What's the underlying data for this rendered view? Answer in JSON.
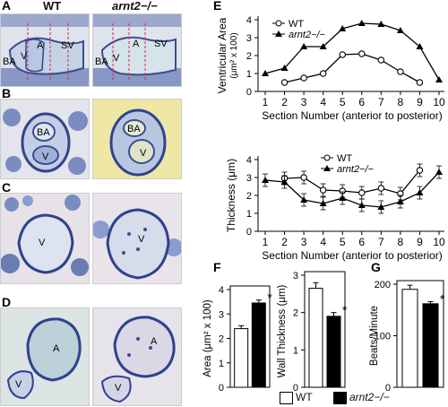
{
  "panel_letters": {
    "a": "A",
    "b": "B",
    "c": "C",
    "d": "D",
    "e": "E",
    "f": "F",
    "g": "G"
  },
  "histology": {
    "col_wt": "WT",
    "col_mut": "arnt2−/−",
    "a_wt_labels": [
      "BA",
      "V",
      "A",
      "SV"
    ],
    "a_mut_labels": [
      "BA",
      "V",
      "A",
      "SV"
    ],
    "b_wt_labels": [
      "BA",
      "V"
    ],
    "b_mut_labels": [
      "BA",
      "V"
    ],
    "c_wt_labels": [
      "V"
    ],
    "c_mut_labels": [
      "V"
    ],
    "d_wt_labels": [
      "A",
      "V"
    ],
    "d_mut_labels": [
      "A",
      "V"
    ]
  },
  "colors": {
    "he_bg": "#d9dfe8",
    "tissue_blue": "#5a6fa8",
    "tissue_light": "#c7d4e4",
    "mut_yellow": "#efe7a5",
    "wt_bar": "#ffffff",
    "mut_bar": "#000000"
  },
  "chart_data": [
    {
      "type": "line",
      "ylabel": "Ventricular Area",
      "ylabel_unit": "(μm² x 100)",
      "xlabel": "Section Number (anterior to posterior)",
      "x": [
        1,
        2,
        3,
        4,
        5,
        6,
        7,
        8,
        9,
        10
      ],
      "ylim": [
        0,
        4
      ],
      "yticks": [
        0,
        1,
        2,
        3,
        4
      ],
      "series": [
        {
          "name": "WT",
          "marker": "open-circle",
          "x": [
            2,
            3,
            4,
            5,
            6,
            7,
            8,
            9
          ],
          "values": [
            0.5,
            0.75,
            1.0,
            2.05,
            2.1,
            1.75,
            1.1,
            0.5
          ]
        },
        {
          "name": "arnt2−/−",
          "marker": "filled-triangle",
          "x": [
            1,
            2,
            3,
            4,
            5,
            6,
            7,
            8,
            9,
            10
          ],
          "values": [
            1.0,
            1.3,
            2.5,
            2.5,
            3.5,
            3.8,
            3.75,
            3.4,
            2.5,
            0.65
          ]
        }
      ],
      "legend": "top-left"
    },
    {
      "type": "line",
      "ylabel": "Thickness (μm)",
      "xlabel": "Section Number (anterior to posterior)",
      "x": [
        1,
        2,
        3,
        4,
        5,
        6,
        7,
        8,
        9,
        10
      ],
      "ylim": [
        0,
        4
      ],
      "yticks": [
        0,
        1,
        2,
        3,
        4
      ],
      "series": [
        {
          "name": "WT",
          "marker": "open-circle",
          "x": [
            2,
            3,
            4,
            5,
            6,
            7,
            8,
            9
          ],
          "values": [
            2.95,
            3.0,
            2.3,
            2.25,
            2.15,
            2.4,
            2.1,
            3.4
          ]
        },
        {
          "name": "arnt2−/−",
          "marker": "filled-triangle",
          "x": [
            1,
            2,
            3,
            4,
            5,
            6,
            7,
            8,
            9,
            10
          ],
          "values": [
            2.85,
            2.75,
            1.75,
            1.55,
            1.85,
            1.45,
            1.35,
            1.65,
            2.15,
            3.3
          ]
        }
      ],
      "legend": "top-center"
    },
    {
      "type": "bar",
      "ylabel": "Area (μm² x 100)",
      "categories": [
        "WT",
        "arnt2−/−"
      ],
      "values": [
        2.4,
        3.45
      ],
      "ylim": [
        0,
        4
      ],
      "yticks": [
        0,
        1,
        2,
        3,
        4
      ],
      "significance": "*"
    },
    {
      "type": "bar",
      "ylabel": "Wall Thickness (μm)",
      "categories": [
        "WT",
        "arnt2−/−"
      ],
      "values": [
        2.65,
        1.9
      ],
      "ylim": [
        0,
        3
      ],
      "yticks": [
        0,
        1,
        2,
        3
      ],
      "significance": "*"
    },
    {
      "type": "bar",
      "ylabel": "Beats/Minute",
      "categories": [
        "WT",
        "arnt2−/−"
      ],
      "values": [
        190,
        162
      ],
      "ylim": [
        0,
        200
      ],
      "yticks": [
        0,
        100,
        200
      ],
      "significance": "*"
    }
  ],
  "bar_legend": {
    "wt": "WT",
    "mut": "arnt2−/−"
  }
}
